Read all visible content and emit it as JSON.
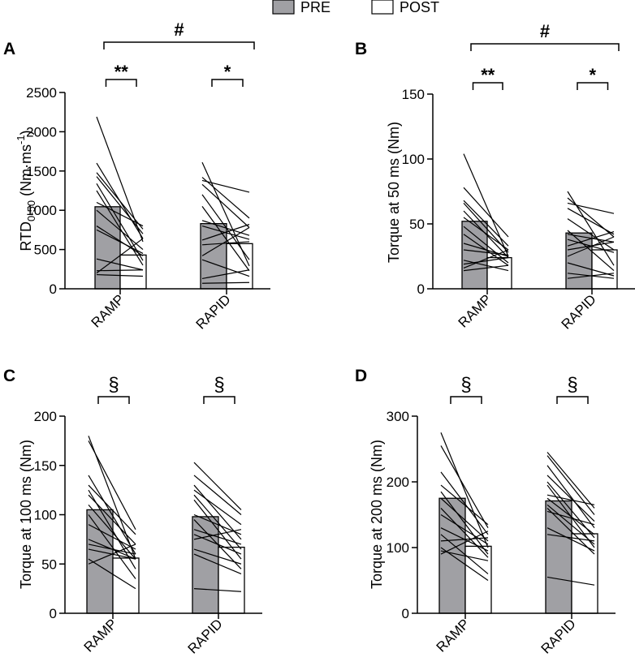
{
  "legend": [
    {
      "label": "PRE",
      "color": "#a0a0a4"
    },
    {
      "label": "POST",
      "color": "#ffffff"
    }
  ],
  "chart_data": [
    {
      "type": "bar",
      "panel": "A",
      "ylabel_main": "RTD",
      "ylabel_sub": "0-50",
      "ylabel_rest": " (Nm·ms",
      "ylabel_sup": "-1",
      "ylabel_end": ")",
      "ylim": [
        0,
        2500
      ],
      "yticks": [
        0,
        500,
        1000,
        1500,
        2000,
        2500
      ],
      "categories": [
        "RAMP",
        "RAPID"
      ],
      "series": [
        {
          "name": "PRE",
          "values": [
            1045,
            830
          ]
        },
        {
          "name": "POST",
          "values": [
            430,
            575
          ]
        }
      ],
      "individual": [
        [
          [
            2190,
            600
          ],
          [
            1600,
            640
          ],
          [
            1480,
            760
          ],
          [
            1430,
            700
          ],
          [
            1340,
            360
          ],
          [
            1250,
            300
          ],
          [
            1100,
            800
          ],
          [
            1000,
            500
          ],
          [
            800,
            420
          ],
          [
            750,
            450
          ],
          [
            380,
            240
          ],
          [
            230,
            240
          ],
          [
            200,
            640
          ],
          [
            180,
            160
          ]
        ],
        [
          [
            1610,
            290
          ],
          [
            1420,
            900
          ],
          [
            1380,
            1230
          ],
          [
            1330,
            780
          ],
          [
            1200,
            370
          ],
          [
            1050,
            230
          ],
          [
            870,
            680
          ],
          [
            800,
            630
          ],
          [
            620,
            820
          ],
          [
            560,
            600
          ],
          [
            420,
            780
          ],
          [
            370,
            160
          ],
          [
            130,
            240
          ],
          [
            70,
            80
          ]
        ]
      ],
      "brackets": [
        {
          "from": "RAMP",
          "to": "RAPID",
          "label": "#",
          "level": "top"
        },
        {
          "from": "RAMP PRE",
          "to": "RAMP POST",
          "label": "**",
          "level": "low"
        },
        {
          "from": "RAPID PRE",
          "to": "RAPID POST",
          "label": "*",
          "level": "low"
        }
      ]
    },
    {
      "type": "bar",
      "panel": "B",
      "ylabel": "Torque at 50 ms (Nm)",
      "ylim": [
        0,
        150
      ],
      "yticks": [
        0,
        50,
        100,
        150
      ],
      "categories": [
        "RAMP",
        "RAPID"
      ],
      "series": [
        {
          "name": "PRE",
          "values": [
            52,
            43
          ]
        },
        {
          "name": "POST",
          "values": [
            24,
            30
          ]
        }
      ],
      "individual": [
        [
          [
            104,
            25
          ],
          [
            78,
            40
          ],
          [
            68,
            33
          ],
          [
            66,
            28
          ],
          [
            60,
            24
          ],
          [
            55,
            30
          ],
          [
            48,
            20
          ],
          [
            42,
            18
          ],
          [
            35,
            25
          ],
          [
            30,
            26
          ],
          [
            22,
            14
          ],
          [
            19,
            24
          ],
          [
            16,
            30
          ],
          [
            14,
            18
          ]
        ],
        [
          [
            75,
            18
          ],
          [
            70,
            40
          ],
          [
            66,
            58
          ],
          [
            62,
            42
          ],
          [
            54,
            30
          ],
          [
            45,
            14
          ],
          [
            42,
            36
          ],
          [
            38,
            28
          ],
          [
            33,
            44
          ],
          [
            30,
            36
          ],
          [
            25,
            40
          ],
          [
            20,
            10
          ],
          [
            12,
            8
          ],
          [
            8,
            12
          ]
        ]
      ],
      "brackets": [
        {
          "from": "RAMP",
          "to": "RAPID",
          "label": "#",
          "level": "top"
        },
        {
          "from": "RAMP PRE",
          "to": "RAMP POST",
          "label": "**",
          "level": "low"
        },
        {
          "from": "RAPID PRE",
          "to": "RAPID POST",
          "label": "*",
          "level": "low"
        }
      ]
    },
    {
      "type": "bar",
      "panel": "C",
      "ylabel": "Torque at 100 ms (Nm)",
      "ylim": [
        0,
        200
      ],
      "yticks": [
        0,
        50,
        100,
        150,
        200
      ],
      "categories": [
        "RAMP",
        "RAPID"
      ],
      "series": [
        {
          "name": "PRE",
          "values": [
            105,
            98
          ]
        },
        {
          "name": "POST",
          "values": [
            56,
            67
          ]
        }
      ],
      "individual": [
        [
          [
            180,
            55
          ],
          [
            175,
            85
          ],
          [
            140,
            60
          ],
          [
            130,
            80
          ],
          [
            125,
            45
          ],
          [
            120,
            70
          ],
          [
            110,
            55
          ],
          [
            100,
            35
          ],
          [
            90,
            65
          ],
          [
            75,
            55
          ],
          [
            70,
            60
          ],
          [
            65,
            55
          ],
          [
            55,
            25
          ],
          [
            50,
            70
          ]
        ],
        [
          [
            153,
            105
          ],
          [
            140,
            100
          ],
          [
            130,
            75
          ],
          [
            125,
            90
          ],
          [
            120,
            65
          ],
          [
            115,
            55
          ],
          [
            100,
            80
          ],
          [
            95,
            45
          ],
          [
            85,
            70
          ],
          [
            75,
            85
          ],
          [
            65,
            50
          ],
          [
            60,
            40
          ],
          [
            25,
            22
          ],
          [
            80,
            60
          ]
        ]
      ],
      "brackets": [
        {
          "from": "RAMP PRE",
          "to": "RAMP POST",
          "label": "§",
          "level": "low"
        },
        {
          "from": "RAPID PRE",
          "to": "RAPID POST",
          "label": "§",
          "level": "low"
        }
      ]
    },
    {
      "type": "bar",
      "panel": "D",
      "ylabel": "Torque at 200 ms (Nm)",
      "ylim": [
        0,
        300
      ],
      "yticks": [
        0,
        100,
        200,
        300
      ],
      "categories": [
        "RAMP",
        "RAPID"
      ],
      "series": [
        {
          "name": "PRE",
          "values": [
            175,
            171
          ]
        },
        {
          "name": "POST",
          "values": [
            102,
            121
          ]
        }
      ],
      "individual": [
        [
          [
            275,
            100
          ],
          [
            255,
            130
          ],
          [
            215,
            120
          ],
          [
            195,
            135
          ],
          [
            185,
            90
          ],
          [
            175,
            110
          ],
          [
            160,
            85
          ],
          [
            150,
            105
          ],
          [
            130,
            95
          ],
          [
            120,
            60
          ],
          [
            110,
            115
          ],
          [
            100,
            50
          ],
          [
            95,
            80
          ],
          [
            90,
            125
          ]
        ],
        [
          [
            245,
            160
          ],
          [
            240,
            150
          ],
          [
            225,
            130
          ],
          [
            210,
            140
          ],
          [
            200,
            115
          ],
          [
            195,
            100
          ],
          [
            180,
            165
          ],
          [
            175,
            120
          ],
          [
            165,
            105
          ],
          [
            160,
            90
          ],
          [
            155,
            135
          ],
          [
            130,
            95
          ],
          [
            120,
            110
          ],
          [
            55,
            43
          ]
        ]
      ],
      "brackets": [
        {
          "from": "RAMP PRE",
          "to": "RAMP POST",
          "label": "§",
          "level": "low"
        },
        {
          "from": "RAPID PRE",
          "to": "RAPID POST",
          "label": "§",
          "level": "low"
        }
      ]
    }
  ]
}
